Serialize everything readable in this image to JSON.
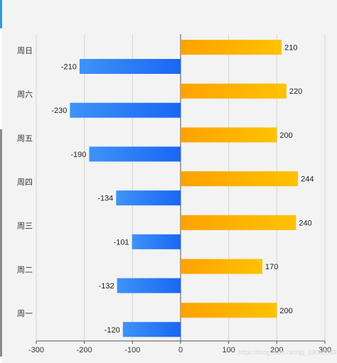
{
  "chart_data": {
    "type": "bar",
    "orientation": "horizontal",
    "categories": [
      "周一",
      "周二",
      "周三",
      "周四",
      "周五",
      "周六",
      "周日"
    ],
    "series": [
      {
        "values": [
          200,
          170,
          240,
          244,
          200,
          220,
          210
        ],
        "color": "#ffa500"
      },
      {
        "values": [
          -120,
          -132,
          -101,
          -134,
          -190,
          -230,
          -210
        ],
        "color": "#1e6ff5"
      }
    ],
    "xlim": [
      -300,
      300
    ],
    "xticks": [
      -300,
      -200,
      -100,
      0,
      100,
      200,
      300
    ],
    "grid": true,
    "legend": "none",
    "xlabel": "",
    "ylabel": "",
    "title": ""
  },
  "watermark": "https://blog.csdn.net/qq_39086853",
  "colors": {
    "background": "#f3f3f3",
    "positive_start": "#ffa200",
    "positive_end": "#ffc200",
    "negative_start": "#3e93f6",
    "negative_end": "#1a66f4",
    "grid": "#d4d4d4",
    "axis": "#555555"
  }
}
